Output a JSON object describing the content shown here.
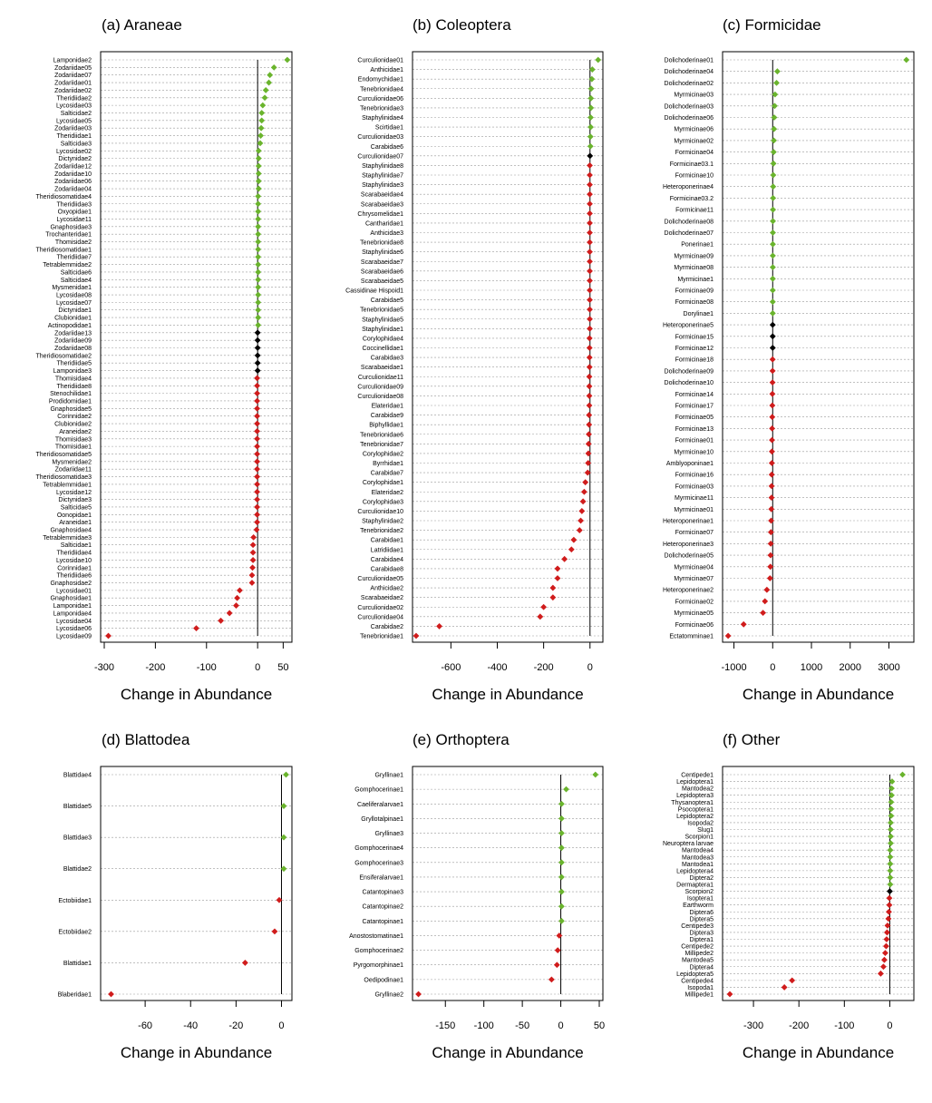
{
  "xlabel": "Change in Abundance",
  "colors": {
    "increase": "#6ab42d",
    "neutral": "#000000",
    "decrease": "#d01c1c",
    "grid": "#9a9a9a"
  },
  "chart_data": [
    {
      "type": "dot",
      "title": "(a) Araneae",
      "xlabel": "Change in Abundance",
      "xlim": [
        -300,
        60
      ],
      "xticks": [
        -300,
        -200,
        -100,
        0,
        50
      ],
      "categories": [
        "Lamponidae2",
        "Zodariidae05",
        "Zodariidae07",
        "Zodariidae01",
        "Zodariidae02",
        "Theridiidae2",
        "Lycosidae03",
        "Salticidae2",
        "Lycosidae05",
        "Zodariidae03",
        "Theridiidae1",
        "Salticidae3",
        "Lycosidae02",
        "Dictynidae2",
        "Zodariidae12",
        "Zodariidae10",
        "Zodariidae06",
        "Zodariidae04",
        "Theridiosomatidae4",
        "Theridiidae3",
        "Oxyopidae1",
        "Lycosidae11",
        "Gnaphosidae3",
        "Trochanteridae1",
        "Thomisidae2",
        "Theridiosomatidae1",
        "Theridiidae7",
        "Tetrablemmidae2",
        "Salticidae6",
        "Salticidae4",
        "Mysmenidae1",
        "Lycosidae08",
        "Lycosidae07",
        "Dictynidae1",
        "Clubionidae1",
        "Actinopodidae1",
        "Zodariidae13",
        "Zodariidae09",
        "Zodariidae08",
        "Theridiosomatidae2",
        "Theridiidae5",
        "Lamponidae3",
        "Thomisidae4",
        "Theridiidae8",
        "Stenochilidae1",
        "Prodidomidae1",
        "Gnaphosidae5",
        "Corinnidae2",
        "Clubionidae2",
        "Araneidae2",
        "Thomisidae3",
        "Thomisidae1",
        "Theridiosomatidae5",
        "Mysmenidae2",
        "Zodariidae11",
        "Theridiosomatidae3",
        "Tetrablemmidae1",
        "Lycosidae12",
        "Dictynidae3",
        "Salticidae5",
        "Oonopidae1",
        "Araneidae1",
        "Gnaphosidae4",
        "Tetrablemmidae3",
        "Salticidae1",
        "Theridiidae4",
        "Lycosidae10",
        "Corinnidae1",
        "Theridiidae6",
        "Gnaphosidae2",
        "Lycosidae01",
        "Gnaphosidae1",
        "Lamponidae1",
        "Lamponidae4",
        "Lycosidae04",
        "Lycosidae06",
        "Lycosidae09"
      ],
      "values": [
        58,
        32,
        24,
        22,
        16,
        14,
        10,
        8,
        8,
        7,
        6,
        5,
        2,
        2,
        2,
        2,
        2,
        2,
        1,
        1,
        1,
        1,
        1,
        1,
        1,
        1,
        1,
        1,
        1,
        1,
        1,
        1,
        1,
        1,
        1,
        1,
        0,
        0,
        0,
        0,
        0,
        0,
        -1,
        -1,
        -1,
        -1,
        -1,
        -1,
        -1,
        -1,
        -1,
        -1,
        -1,
        -1,
        -1,
        -1,
        -1,
        -1,
        -1,
        -1,
        -1,
        -1,
        -2,
        -8,
        -9,
        -9,
        -9,
        -10,
        -11,
        -11,
        -35,
        -40,
        -42,
        -55,
        -72,
        -120,
        -292
      ]
    },
    {
      "type": "dot",
      "title": "(b) Coleoptera",
      "xlabel": "Change in Abundance",
      "xlim": [
        -750,
        40
      ],
      "xticks": [
        -600,
        -400,
        -200,
        0
      ],
      "categories": [
        "Curculionidae01",
        "Anthicidae1",
        "Endomychidae1",
        "Tenebrionidae4",
        "Curculionidae06",
        "Tenebrionidae3",
        "Staphylinidae4",
        "Scirtidae1",
        "Curculionidae03",
        "Carabidae6",
        "Curculionidae07",
        "Staphylinidae8",
        "Staphylinidae7",
        "Staphylinidae3",
        "Scarabaeidae4",
        "Scarabaeidae3",
        "Chrysomelidae1",
        "Cantharidae1",
        "Anthicidae3",
        "Tenebrionidae8",
        "Staphylinidae6",
        "Scarabaeidae7",
        "Scarabaeidae6",
        "Scarabaeidae5",
        "Cassidinae Hispoid1",
        "Carabidae5",
        "Tenebrionidae5",
        "Staphylinidae5",
        "Staphylinidae1",
        "Corylophidae4",
        "Coccinellidae1",
        "Carabidae3",
        "Scarabaeidae1",
        "Curculionidae11",
        "Curculionidae09",
        "Curculionidae08",
        "Elateridae1",
        "Carabidae9",
        "Biphyllidae1",
        "Tenebrionidae6",
        "Tenebrionidae7",
        "Corylophidae2",
        "Byrrhidae1",
        "Carabidae7",
        "Corylophidae1",
        "Elateridae2",
        "Corylophidae3",
        "Curculionidae10",
        "Staphylinidae2",
        "Tenebrionidae2",
        "Carabidae1",
        "Latridiidae1",
        "Carabidae4",
        "Carabidae8",
        "Curculionidae05",
        "Anthicidae2",
        "Scarabaeidae2",
        "Curculionidae02",
        "Curculionidae04",
        "Carabidae2",
        "Tenebrionidae1"
      ],
      "values": [
        35,
        10,
        8,
        5,
        4,
        4,
        3,
        3,
        2,
        2,
        0,
        -1,
        -1,
        -1,
        -1,
        -1,
        -1,
        -1,
        -1,
        -1,
        -1,
        -1,
        -1,
        -1,
        -1,
        -1,
        -1,
        -1,
        -1,
        -2,
        -2,
        -2,
        -2,
        -3,
        -3,
        -3,
        -3,
        -4,
        -4,
        -5,
        -6,
        -7,
        -8,
        -10,
        -20,
        -25,
        -30,
        -35,
        -40,
        -45,
        -70,
        -80,
        -110,
        -140,
        -140,
        -160,
        -160,
        -200,
        -215,
        -650,
        -750
      ]
    },
    {
      "type": "dot",
      "title": "(c) Formicidae",
      "xlabel": "Change in Abundance",
      "xlim": [
        -1200,
        3550
      ],
      "xticks": [
        -1000,
        0,
        1000,
        2000,
        3000
      ],
      "categories": [
        "Dolichoderinae01",
        "Dolichoderinae04",
        "Dolichoderinae02",
        "Myrmicinae03",
        "Dolichoderinae03",
        "Dolichoderinae06",
        "Myrmicinae06",
        "Myrmicinae02",
        "Formicinae04",
        "Formicinae03.1",
        "Formicinae10",
        "Heteroponerinae4",
        "Formicinae03.2",
        "Formicinae11",
        "Dolichoderinae08",
        "Dolichoderinae07",
        "Ponerinae1",
        "Myrmicinae09",
        "Myrmicinae08",
        "Myrmicinae1",
        "Formicinae09",
        "Formicinae08",
        "Dorylinae1",
        "Heteroponerinae5",
        "Formicinae15",
        "Formicinae12",
        "Formicinae18",
        "Dolichoderinae09",
        "Dolichoderinae10",
        "Formicinae14",
        "Formicinae17",
        "Formicinae05",
        "Formicinae13",
        "Formicinae01",
        "Myrmicinae10",
        "Amblyoponinae1",
        "Formicinae16",
        "Formicinae03",
        "Myrmicinae11",
        "Myrmicinae01",
        "Heteroponerinae1",
        "Formicinae07",
        "Heteroponerinae3",
        "Dolichoderinae05",
        "Myrmicinae04",
        "Myrmicinae07",
        "Heteroponerinae2",
        "Formicinae02",
        "Myrmicinae05",
        "Formicinae06",
        "Ectatomminae1"
      ],
      "values": [
        3450,
        120,
        100,
        60,
        50,
        40,
        35,
        30,
        25,
        20,
        15,
        12,
        10,
        8,
        6,
        5,
        4,
        3,
        3,
        2,
        2,
        1,
        1,
        0,
        0,
        0,
        -2,
        -3,
        -5,
        -8,
        -10,
        -12,
        -15,
        -18,
        -20,
        -22,
        -25,
        -28,
        -30,
        -35,
        -40,
        -45,
        -50,
        -55,
        -60,
        -70,
        -150,
        -200,
        -250,
        -750,
        -1150
      ]
    },
    {
      "type": "dot",
      "title": "(d) Blattodea",
      "xlabel": "Change in Abundance",
      "xlim": [
        -78,
        3
      ],
      "xticks": [
        -60,
        -40,
        -20,
        0
      ],
      "categories": [
        "Blattidae4",
        "Blattidae5",
        "Blattidae3",
        "Blattidae2",
        "Ectobiidae1",
        "Ectobiidae2",
        "Blattidae1",
        "Blaberidae1"
      ],
      "values": [
        2,
        1,
        1,
        1,
        -1,
        -3,
        -16,
        -75
      ]
    },
    {
      "type": "dot",
      "title": "(e) Orthoptera",
      "xlabel": "Change in Abundance",
      "xlim": [
        -188,
        50
      ],
      "xticks": [
        -150,
        -100,
        -50,
        0,
        50
      ],
      "categories": [
        "Gryllinae1",
        "Gomphocerinae1",
        "Caeliferalarvae1",
        "Gryllotalpinae1",
        "Gryllinae3",
        "Gomphocerinae4",
        "Gomphocerinae3",
        "Ensiferalarvae1",
        "Catantopinae3",
        "Catantopinae2",
        "Catantopinae1",
        "Anostostomatinae1",
        "Gomphocerinae2",
        "Pyrgomorphinae1",
        "Oedipodinae1",
        "Gryllinae2"
      ],
      "values": [
        45,
        7,
        1,
        1,
        1,
        1,
        1,
        1,
        1,
        1,
        1,
        -2,
        -4,
        -5,
        -12,
        -185
      ]
    },
    {
      "type": "dot",
      "title": "(f) Other",
      "xlabel": "Change in Abundance",
      "xlim": [
        -360,
        45
      ],
      "xticks": [
        -300,
        -200,
        -100,
        0
      ],
      "categories": [
        "Centipede1",
        "Lepidoptera1",
        "Mantodea2",
        "Lepidoptera3",
        "Thysanoptera1",
        "Psocoptera1",
        "Lepidoptera2",
        "Isopoda2",
        "Slug1",
        "Scorpion1",
        "Neuroptera larvae",
        "Mantodea4",
        "Mantodea3",
        "Mantodea1",
        "Lepidoptera4",
        "Diptera2",
        "Dermaptera1",
        "Scorpion2",
        "Isoptera1",
        "Earthworm",
        "Diptera6",
        "Diptera5",
        "Centipede3",
        "Diptera3",
        "Diptera1",
        "Centipede2",
        "Millipede2",
        "Mantodea5",
        "Diptera4",
        "Lepidoptera5",
        "Centipede4",
        "Isopoda1",
        "Millipede1"
      ],
      "values": [
        28,
        5,
        4,
        4,
        3,
        3,
        3,
        2,
        2,
        2,
        2,
        1,
        1,
        1,
        1,
        1,
        1,
        0,
        -1,
        -1,
        -2,
        -3,
        -5,
        -6,
        -7,
        -8,
        -10,
        -12,
        -14,
        -20,
        -215,
        -232,
        -352
      ]
    }
  ]
}
